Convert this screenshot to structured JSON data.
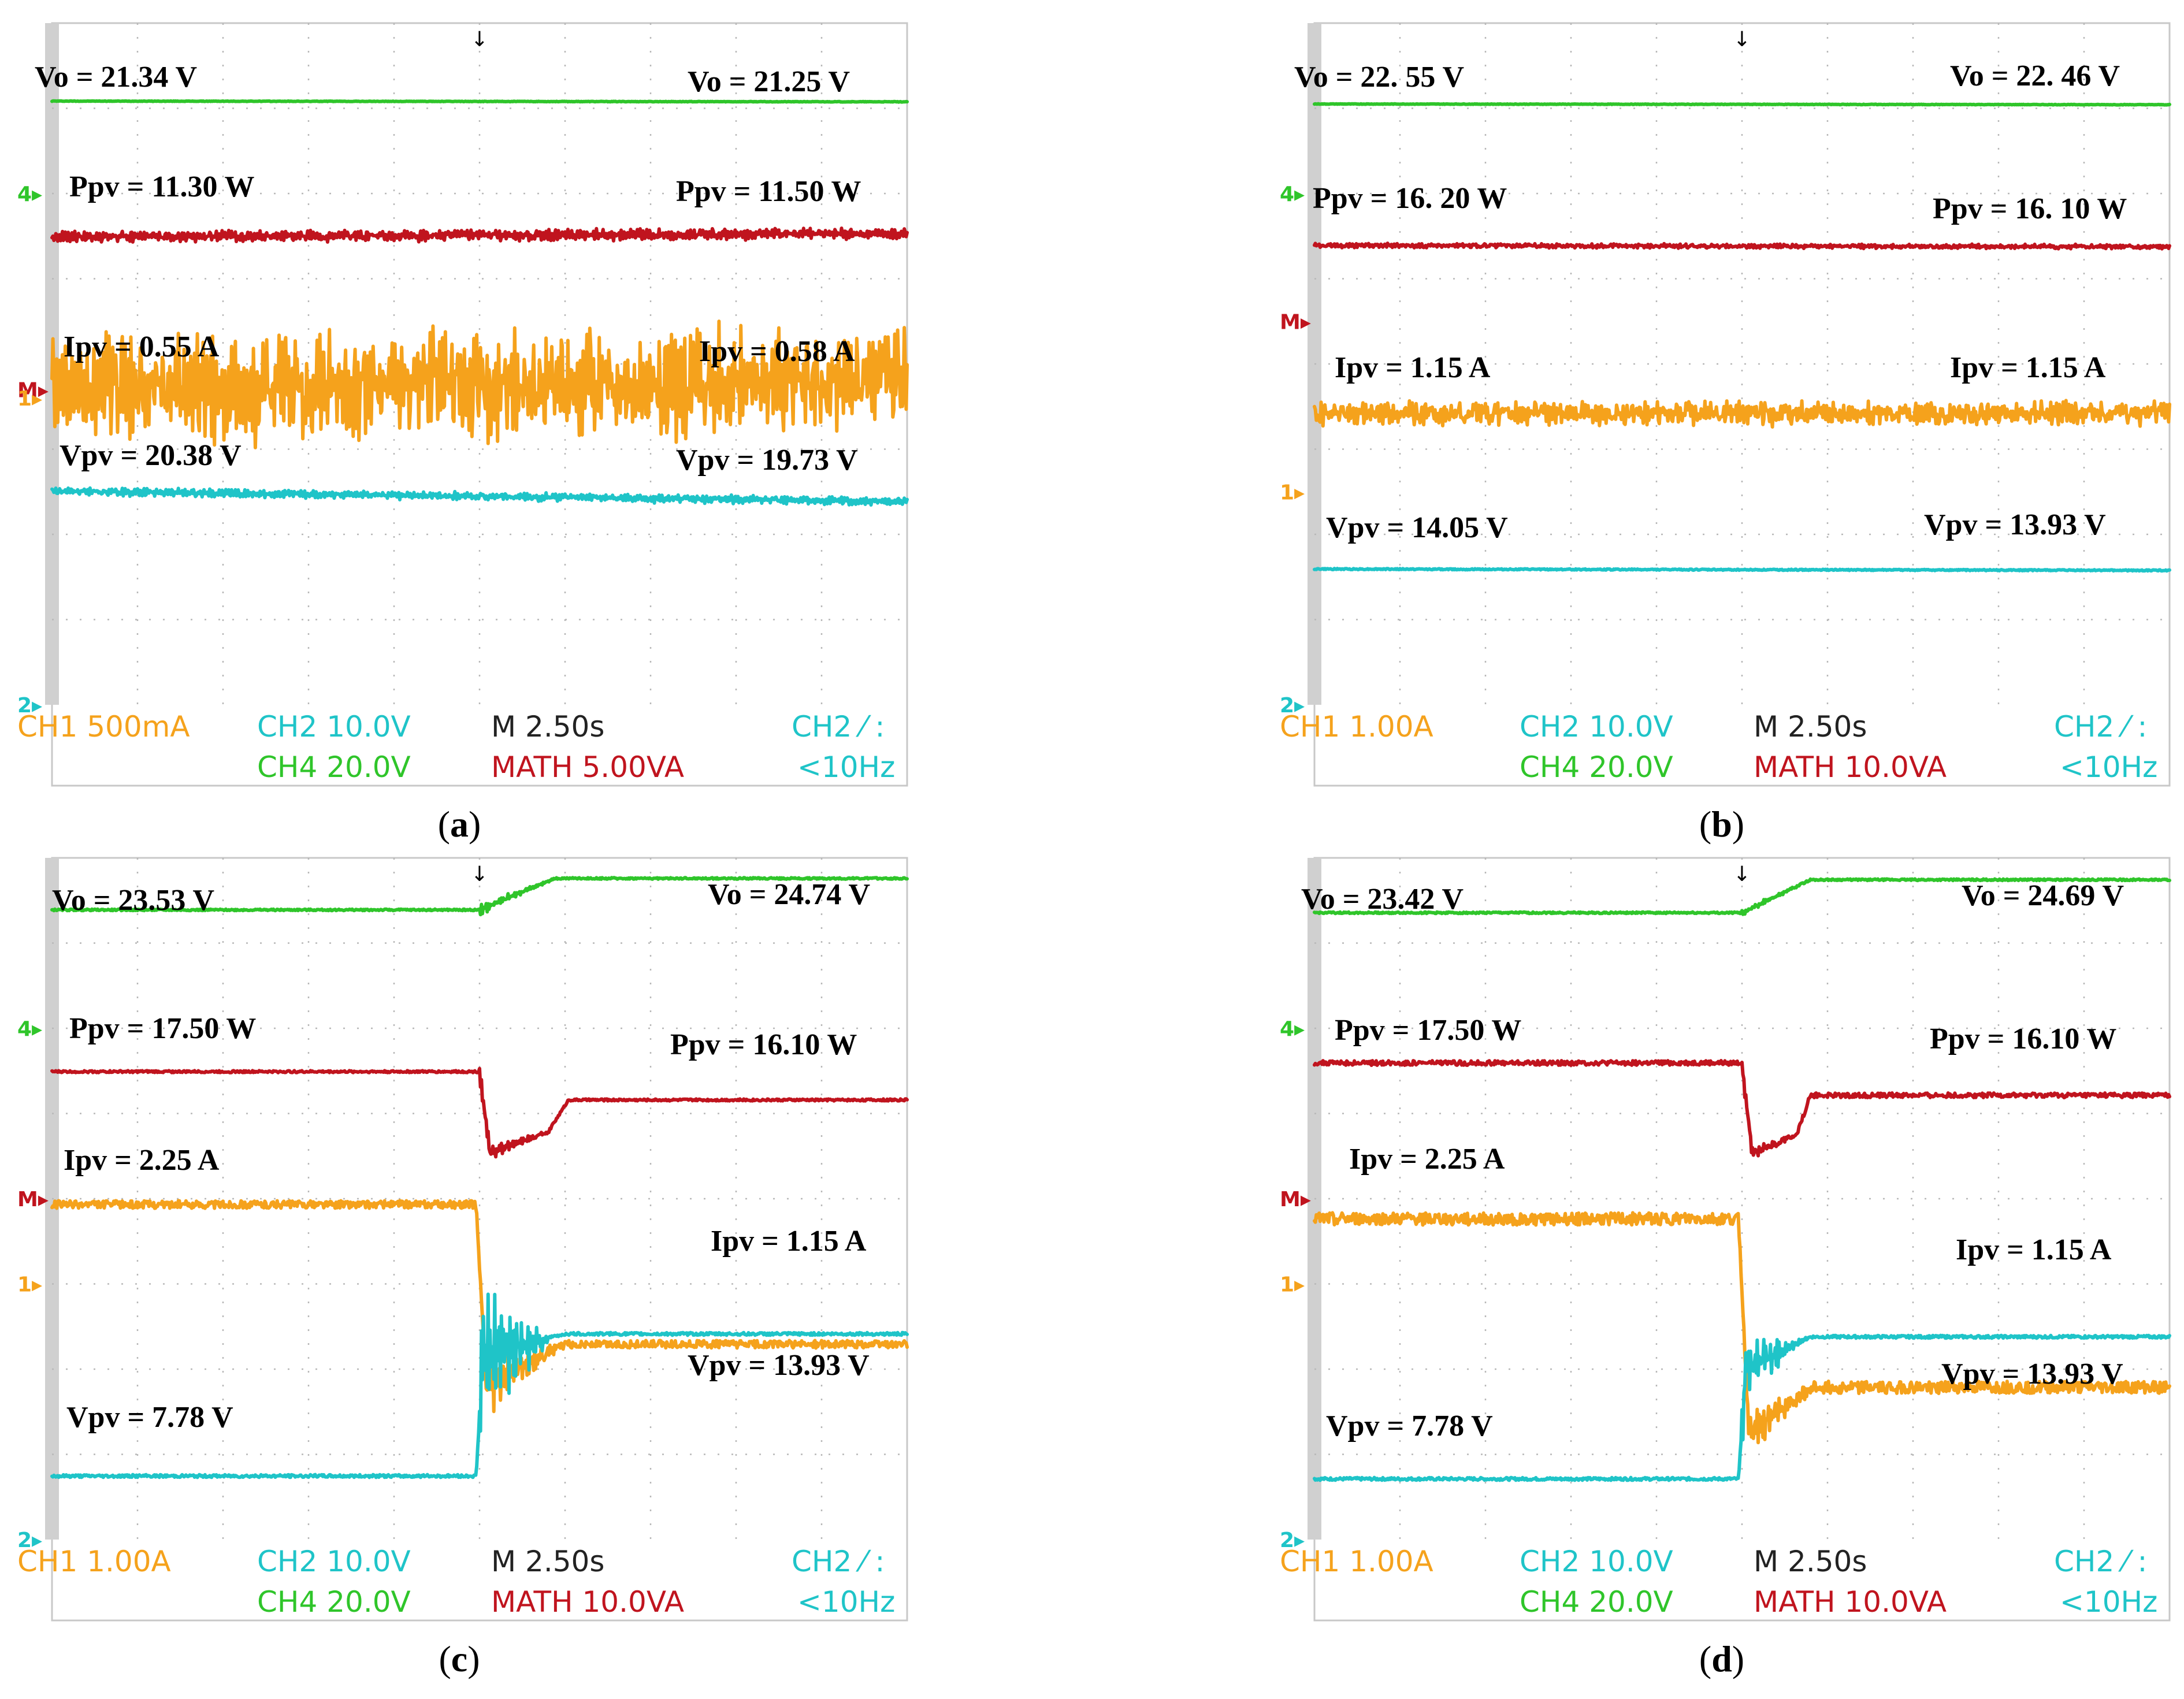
{
  "colors": {
    "ch1": "#f5a21c",
    "ch2": "#1fc4c8",
    "ch4": "#2fc52a",
    "math": "#c0141e",
    "scale_text": "#222222",
    "grid": "#b8b8b8",
    "border": "#c8c8c8"
  },
  "chart_data": [
    {
      "panel": "a",
      "type": "line",
      "caption": "a",
      "x_unit": "s",
      "time_per_div": 2.5,
      "xlim": [
        -12.5,
        12.5
      ],
      "trigger_marker": "↓",
      "channel_markers": [
        {
          "label": "4",
          "channel": "ch4",
          "div": 2.0
        },
        {
          "label": "M",
          "channel": "math",
          "div": -0.3
        },
        {
          "label": "1",
          "channel": "ch1",
          "div": -0.4
        },
        {
          "label": "2",
          "channel": "ch2",
          "div": -4.0
        }
      ],
      "series": [
        {
          "name": "Vo",
          "channel": "ch4",
          "noise": 0.03,
          "osc": 0,
          "points": [
            [
              -12.5,
              21.34
            ],
            [
              12.5,
              21.25
            ]
          ],
          "start_label": "Vo = 21.34 V",
          "end_label": "Vo = 21.25 V"
        },
        {
          "name": "Ppv",
          "channel": "math",
          "noise": 0.18,
          "osc": 0.3,
          "points": [
            [
              -12.5,
              11.3
            ],
            [
              12.5,
              11.5
            ]
          ],
          "start_label": "Ppv = 11.30 W",
          "end_label": "Ppv = 11.50 W"
        },
        {
          "name": "Ipv",
          "channel": "ch1",
          "noise": 0.18,
          "osc": 0.25,
          "points": [
            [
              -12.5,
              0.55
            ],
            [
              12.5,
              0.58
            ]
          ],
          "start_label": "Ipv = 0.55 A",
          "end_label": "Ipv = 0.58 A"
        },
        {
          "name": "Vpv",
          "channel": "ch2",
          "noise": 0.14,
          "osc": 0.2,
          "points": [
            [
              -12.5,
              20.38
            ],
            [
              12.5,
              19.73
            ]
          ],
          "start_label": "Vpv = 20.38 V",
          "end_label": "Vpv = 19.73 V"
        }
      ],
      "footer": {
        "ch1": "CH1  500mA",
        "ch2": "CH2  10.0V",
        "ch4": "CH4  20.0V",
        "time": "M 2.50s",
        "math": "MATH 5.00VA",
        "trig_src": "CH2 ⁄ :",
        "trig_freq": "<10Hz"
      }
    },
    {
      "panel": "b",
      "type": "line",
      "caption": "b",
      "x_unit": "s",
      "time_per_div": 2.5,
      "xlim": [
        -12.5,
        12.5
      ],
      "trigger_marker": "↓",
      "channel_markers": [
        {
          "label": "4",
          "channel": "ch4",
          "div": 2.0
        },
        {
          "label": "M",
          "channel": "math",
          "div": 0.5
        },
        {
          "label": "1",
          "channel": "ch1",
          "div": -1.5
        },
        {
          "label": "2",
          "channel": "ch2",
          "div": -4.0
        }
      ],
      "series": [
        {
          "name": "Vo",
          "channel": "ch4",
          "noise": 0.03,
          "osc": 0,
          "points": [
            [
              -12.5,
              22.55
            ],
            [
              12.5,
              22.46
            ]
          ],
          "start_label": "Vo = 22. 55 V",
          "end_label": "Vo = 22. 46 V"
        },
        {
          "name": "Ppv",
          "channel": "math",
          "noise": 0.13,
          "osc": 0.1,
          "points": [
            [
              -12.5,
              16.2
            ],
            [
              12.5,
              16.1
            ]
          ],
          "start_label": "Ppv = 16. 20 W",
          "end_label": "Ppv = 16. 10 W"
        },
        {
          "name": "Ipv",
          "channel": "ch1",
          "noise": 0.1,
          "osc": 0.08,
          "points": [
            [
              -12.5,
              1.15
            ],
            [
              12.5,
              1.15
            ]
          ],
          "start_label": "Ipv = 1.15 A",
          "end_label": "Ipv = 1.15 A"
        },
        {
          "name": "Vpv",
          "channel": "ch2",
          "noise": 0.05,
          "osc": 0,
          "points": [
            [
              -12.5,
              14.05
            ],
            [
              12.5,
              13.93
            ]
          ],
          "start_label": "Vpv = 14.05 V",
          "end_label": "Vpv = 13.93 V"
        }
      ],
      "footer": {
        "ch1": "CH1  1.00A",
        "ch2": "CH2  10.0V",
        "ch4": "CH4  20.0V",
        "time": "M 2.50s",
        "math": "MATH 10.0VA",
        "trig_src": "CH2 ⁄ :",
        "trig_freq": "<10Hz"
      }
    },
    {
      "panel": "c",
      "type": "line",
      "caption": "c",
      "x_unit": "s",
      "time_per_div": 2.5,
      "xlim": [
        -12.5,
        12.5
      ],
      "trigger_marker": "↓",
      "channel_markers": [
        {
          "label": "4",
          "channel": "ch4",
          "div": 2.0
        },
        {
          "label": "M",
          "channel": "math",
          "div": 0.0
        },
        {
          "label": "1",
          "channel": "ch1",
          "div": -1.0
        },
        {
          "label": "2",
          "channel": "ch2",
          "div": -4.0
        }
      ],
      "series": [
        {
          "name": "Vo",
          "channel": "ch4",
          "noise": 0.03,
          "osc": 0,
          "transient": {
            "t0": 0,
            "dur": 2.2,
            "amp": 0.25
          },
          "points": [
            [
              -12.5,
              23.53
            ],
            [
              0,
              23.53
            ],
            [
              2.2,
              24.74
            ],
            [
              12.5,
              24.74
            ]
          ],
          "start_label": "Vo = 23.53 V",
          "end_label": "Vo = 24.74 V"
        },
        {
          "name": "Ppv",
          "channel": "math",
          "noise": 0.05,
          "osc": 0,
          "transient": {
            "t0": 0,
            "dur": 2.2,
            "amp": 0.5
          },
          "points": [
            [
              -12.5,
              17.5
            ],
            [
              0,
              17.5
            ],
            [
              0.3,
              13.5
            ],
            [
              2.0,
              14.5
            ],
            [
              2.6,
              16.1
            ],
            [
              12.5,
              16.1
            ]
          ],
          "start_label": "Ppv = 17.50 W",
          "end_label": "Ppv = 16.10 W"
        },
        {
          "name": "Ipv",
          "channel": "ch1",
          "noise": 0.03,
          "osc": 0,
          "transient": {
            "t0": 0.2,
            "dur": 2.3,
            "amp": 0.25
          },
          "points": [
            [
              -12.5,
              2.25
            ],
            [
              -0.1,
              2.25
            ],
            [
              0.2,
              0.8
            ],
            [
              2.5,
              1.15
            ],
            [
              12.5,
              1.15
            ]
          ],
          "start_label": "Ipv = 2.25 A",
          "end_label": "Ipv = 1.15 A"
        },
        {
          "name": "Vpv",
          "channel": "ch2",
          "noise": 0.06,
          "osc": 0,
          "transient": {
            "t0": 0,
            "dur": 2.2,
            "amp": 3.5
          },
          "points": [
            [
              -12.5,
              7.78
            ],
            [
              -0.1,
              7.78
            ],
            [
              0.1,
              13.0
            ],
            [
              2.5,
              13.93
            ],
            [
              12.5,
              13.93
            ]
          ],
          "start_label": "Vpv = 7.78 V",
          "end_label": "Vpv = 13.93 V"
        }
      ],
      "footer": {
        "ch1": "CH1  1.00A",
        "ch2": "CH2  10.0V",
        "ch4": "CH4  20.0V",
        "time": "M 2.50s",
        "math": "MATH 10.0VA",
        "trig_src": "CH2 ⁄ :",
        "trig_freq": "<10Hz"
      }
    },
    {
      "panel": "d",
      "type": "line",
      "caption": "d",
      "x_unit": "s",
      "time_per_div": 2.5,
      "xlim": [
        -12.5,
        12.5
      ],
      "trigger_marker": "↓",
      "channel_markers": [
        {
          "label": "4",
          "channel": "ch4",
          "div": 2.0
        },
        {
          "label": "M",
          "channel": "math",
          "div": 0.0
        },
        {
          "label": "1",
          "channel": "ch1",
          "div": -1.0
        },
        {
          "label": "2",
          "channel": "ch2",
          "div": -4.0
        }
      ],
      "series": [
        {
          "name": "Vo",
          "channel": "ch4",
          "noise": 0.03,
          "osc": 0,
          "transient": {
            "t0": 0,
            "dur": 2.0,
            "amp": 0.12
          },
          "points": [
            [
              -12.5,
              23.42
            ],
            [
              0,
              23.42
            ],
            [
              2.0,
              24.69
            ],
            [
              12.5,
              24.69
            ]
          ],
          "start_label": "Vo = 23.42 V",
          "end_label": "Vo = 24.69 V"
        },
        {
          "name": "Ppv",
          "channel": "math",
          "noise": 0.1,
          "osc": 0,
          "transient": {
            "t0": 0,
            "dur": 1.6,
            "amp": 0.4
          },
          "points": [
            [
              -12.5,
              17.5
            ],
            [
              0,
              17.5
            ],
            [
              0.3,
              13.6
            ],
            [
              1.6,
              14.4
            ],
            [
              2.0,
              16.1
            ],
            [
              12.5,
              16.1
            ]
          ],
          "start_label": "Ppv = 17.50 W",
          "end_label": "Ppv = 16.10 W"
        },
        {
          "name": "Ipv",
          "channel": "ch1",
          "noise": 0.04,
          "osc": 0,
          "transient": {
            "t0": 0.2,
            "dur": 1.8,
            "amp": 0.15
          },
          "points": [
            [
              -12.5,
              2.25
            ],
            [
              -0.1,
              2.25
            ],
            [
              0.2,
              0.85
            ],
            [
              2.0,
              1.15
            ],
            [
              12.5,
              1.15
            ]
          ],
          "start_label": "Ipv = 2.25 A",
          "end_label": "Ipv = 1.15 A"
        },
        {
          "name": "Vpv",
          "channel": "ch2",
          "noise": 0.06,
          "osc": 0,
          "transient": {
            "t0": 0,
            "dur": 1.9,
            "amp": 1.5
          },
          "points": [
            [
              -12.5,
              7.78
            ],
            [
              -0.1,
              7.78
            ],
            [
              0.1,
              12.5
            ],
            [
              2.0,
              13.93
            ],
            [
              12.5,
              13.93
            ]
          ],
          "start_label": "Vpv = 7.78 V",
          "end_label": "Vpv = 13.93 V"
        }
      ],
      "footer": {
        "ch1": "CH1  1.00A",
        "ch2": "CH2  10.0V",
        "ch4": "CH4  20.0V",
        "time": "M 2.50s",
        "math": "MATH 10.0VA",
        "trig_src": "CH2 ⁄ :",
        "trig_freq": "<10Hz"
      }
    }
  ]
}
